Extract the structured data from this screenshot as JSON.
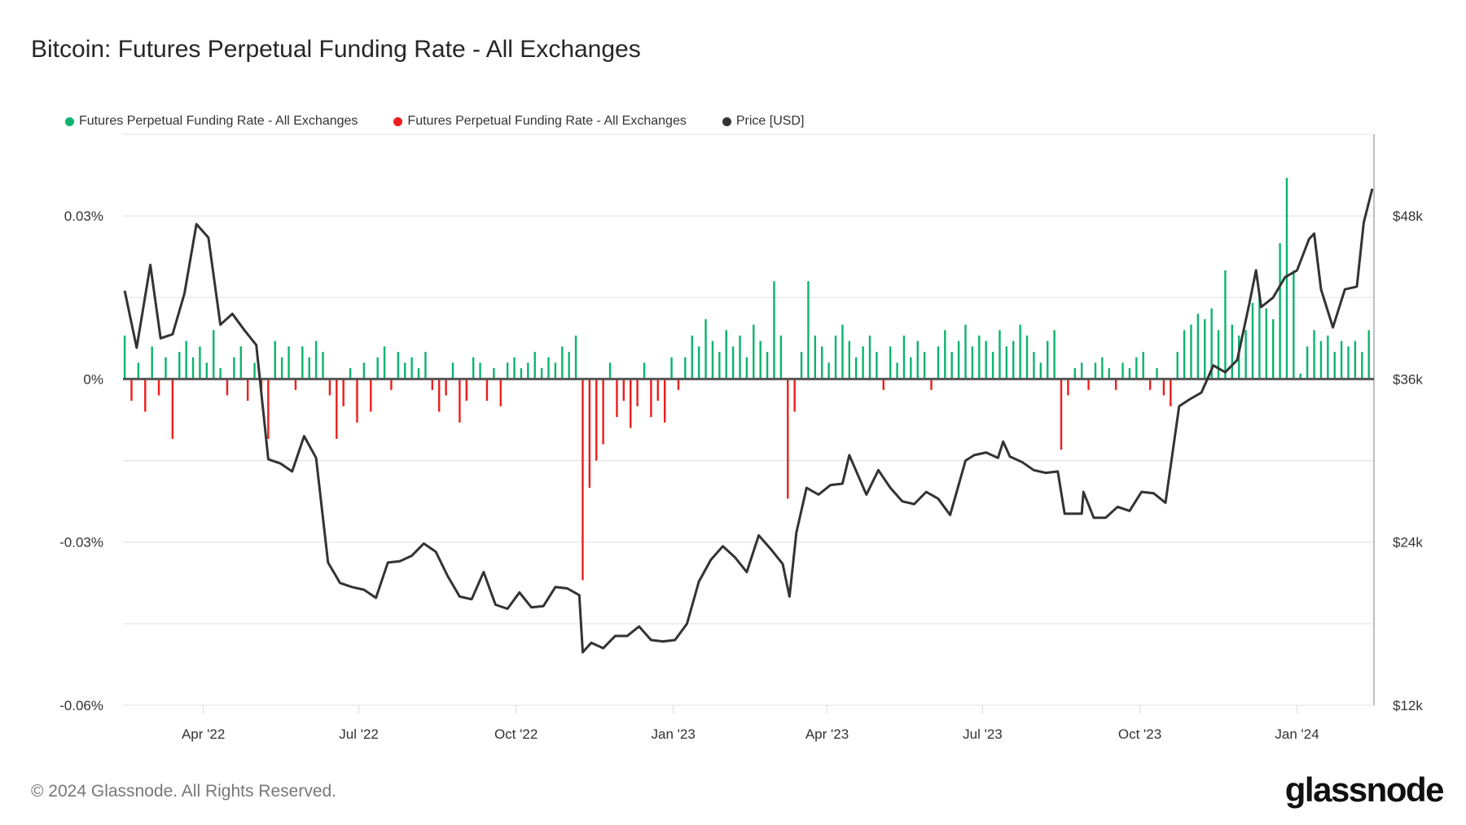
{
  "header": {
    "title": "Bitcoin: Futures Perpetual Funding Rate - All Exchanges"
  },
  "footer": {
    "copyright": "© 2024 Glassnode. All Rights Reserved.",
    "logo": "glassnode"
  },
  "chart_data": {
    "type": "bar+line",
    "title": "Bitcoin: Futures Perpetual Funding Rate - All Exchanges",
    "legend": [
      {
        "label": "Futures Perpetual Funding Rate - All Exchanges",
        "color": "#0bb46e"
      },
      {
        "label": "Futures Perpetual Funding Rate - All Exchanges",
        "color": "#f01c1c"
      },
      {
        "label": "Price [USD]",
        "color": "#333333"
      }
    ],
    "legend_placement": "top-left",
    "grid": true,
    "xlim": [
      "2022-02-13",
      "2024-02-15"
    ],
    "x_ticks": [
      {
        "date": "2022-04-01",
        "label": "Apr '22"
      },
      {
        "date": "2022-07-01",
        "label": "Jul '22"
      },
      {
        "date": "2022-10-01",
        "label": "Oct '22"
      },
      {
        "date": "2023-01-01",
        "label": "Jan '23"
      },
      {
        "date": "2023-04-01",
        "label": "Apr '23"
      },
      {
        "date": "2023-07-01",
        "label": "Jul '23"
      },
      {
        "date": "2023-10-01",
        "label": "Oct '23"
      },
      {
        "date": "2024-01-01",
        "label": "Jan '24"
      }
    ],
    "y_left": {
      "unit": "%",
      "lim": [
        -0.06,
        0.045
      ],
      "ticks": [
        {
          "v": 0.03,
          "label": "0.03%"
        },
        {
          "v": 0,
          "label": "0%"
        },
        {
          "v": -0.03,
          "label": "-0.03%"
        },
        {
          "v": -0.06,
          "label": "-0.06%"
        }
      ]
    },
    "y_right": {
      "unit": "USD",
      "lim": [
        12000,
        54000
      ],
      "ticks": [
        {
          "v": 48000,
          "label": "$48k"
        },
        {
          "v": 36000,
          "label": "$36k"
        },
        {
          "v": 24000,
          "label": "$24k"
        },
        {
          "v": 12000,
          "label": "$12k"
        }
      ]
    },
    "positive_color": "#0bb46e",
    "negative_color": "#f01c1c",
    "price_color": "#333333",
    "funding_rate": [
      [
        "2022-02-14",
        0.008
      ],
      [
        "2022-02-18",
        -0.004
      ],
      [
        "2022-02-22",
        0.003
      ],
      [
        "2022-02-26",
        -0.006
      ],
      [
        "2022-03-02",
        0.006
      ],
      [
        "2022-03-06",
        -0.003
      ],
      [
        "2022-03-10",
        0.004
      ],
      [
        "2022-03-14",
        -0.011
      ],
      [
        "2022-03-18",
        0.005
      ],
      [
        "2022-03-22",
        0.007
      ],
      [
        "2022-03-26",
        0.004
      ],
      [
        "2022-03-30",
        0.006
      ],
      [
        "2022-04-03",
        0.003
      ],
      [
        "2022-04-07",
        0.009
      ],
      [
        "2022-04-11",
        0.002
      ],
      [
        "2022-04-15",
        -0.003
      ],
      [
        "2022-04-19",
        0.004
      ],
      [
        "2022-04-23",
        0.006
      ],
      [
        "2022-04-27",
        -0.004
      ],
      [
        "2022-05-01",
        0.003
      ],
      [
        "2022-05-05",
        -0.002
      ],
      [
        "2022-05-09",
        -0.011
      ],
      [
        "2022-05-13",
        0.007
      ],
      [
        "2022-05-17",
        0.004
      ],
      [
        "2022-05-21",
        0.006
      ],
      [
        "2022-05-25",
        -0.002
      ],
      [
        "2022-05-29",
        0.006
      ],
      [
        "2022-06-02",
        0.004
      ],
      [
        "2022-06-06",
        0.007
      ],
      [
        "2022-06-10",
        0.005
      ],
      [
        "2022-06-14",
        -0.003
      ],
      [
        "2022-06-18",
        -0.011
      ],
      [
        "2022-06-22",
        -0.005
      ],
      [
        "2022-06-26",
        0.002
      ],
      [
        "2022-06-30",
        -0.008
      ],
      [
        "2022-07-04",
        0.003
      ],
      [
        "2022-07-08",
        -0.006
      ],
      [
        "2022-07-12",
        0.004
      ],
      [
        "2022-07-16",
        0.006
      ],
      [
        "2022-07-20",
        -0.002
      ],
      [
        "2022-07-24",
        0.005
      ],
      [
        "2022-07-28",
        0.003
      ],
      [
        "2022-08-01",
        0.004
      ],
      [
        "2022-08-05",
        0.002
      ],
      [
        "2022-08-09",
        0.005
      ],
      [
        "2022-08-13",
        -0.002
      ],
      [
        "2022-08-17",
        -0.006
      ],
      [
        "2022-08-21",
        -0.003
      ],
      [
        "2022-08-25",
        0.003
      ],
      [
        "2022-08-29",
        -0.008
      ],
      [
        "2022-09-02",
        -0.004
      ],
      [
        "2022-09-06",
        0.004
      ],
      [
        "2022-09-10",
        0.003
      ],
      [
        "2022-09-14",
        -0.004
      ],
      [
        "2022-09-18",
        0.002
      ],
      [
        "2022-09-22",
        -0.005
      ],
      [
        "2022-09-26",
        0.003
      ],
      [
        "2022-09-30",
        0.004
      ],
      [
        "2022-10-04",
        0.002
      ],
      [
        "2022-10-08",
        0.003
      ],
      [
        "2022-10-12",
        0.005
      ],
      [
        "2022-10-16",
        0.002
      ],
      [
        "2022-10-20",
        0.004
      ],
      [
        "2022-10-24",
        0.003
      ],
      [
        "2022-10-28",
        0.006
      ],
      [
        "2022-11-01",
        0.005
      ],
      [
        "2022-11-05",
        0.008
      ],
      [
        "2022-11-09",
        -0.037
      ],
      [
        "2022-11-13",
        -0.02
      ],
      [
        "2022-11-17",
        -0.015
      ],
      [
        "2022-11-21",
        -0.012
      ],
      [
        "2022-11-25",
        0.003
      ],
      [
        "2022-11-29",
        -0.007
      ],
      [
        "2022-12-03",
        -0.004
      ],
      [
        "2022-12-07",
        -0.009
      ],
      [
        "2022-12-11",
        -0.005
      ],
      [
        "2022-12-15",
        0.003
      ],
      [
        "2022-12-19",
        -0.007
      ],
      [
        "2022-12-23",
        -0.004
      ],
      [
        "2022-12-27",
        -0.008
      ],
      [
        "2022-12-31",
        0.004
      ],
      [
        "2023-01-04",
        -0.002
      ],
      [
        "2023-01-08",
        0.004
      ],
      [
        "2023-01-12",
        0.008
      ],
      [
        "2023-01-16",
        0.006
      ],
      [
        "2023-01-20",
        0.011
      ],
      [
        "2023-01-24",
        0.007
      ],
      [
        "2023-01-28",
        0.005
      ],
      [
        "2023-02-01",
        0.009
      ],
      [
        "2023-02-05",
        0.006
      ],
      [
        "2023-02-09",
        0.008
      ],
      [
        "2023-02-13",
        0.004
      ],
      [
        "2023-02-17",
        0.01
      ],
      [
        "2023-02-21",
        0.007
      ],
      [
        "2023-02-25",
        0.005
      ],
      [
        "2023-03-01",
        0.018
      ],
      [
        "2023-03-05",
        0.008
      ],
      [
        "2023-03-09",
        -0.022
      ],
      [
        "2023-03-13",
        -0.006
      ],
      [
        "2023-03-17",
        0.005
      ],
      [
        "2023-03-21",
        0.018
      ],
      [
        "2023-03-25",
        0.008
      ],
      [
        "2023-03-29",
        0.006
      ],
      [
        "2023-04-02",
        0.003
      ],
      [
        "2023-04-06",
        0.008
      ],
      [
        "2023-04-10",
        0.01
      ],
      [
        "2023-04-14",
        0.007
      ],
      [
        "2023-04-18",
        0.004
      ],
      [
        "2023-04-22",
        0.006
      ],
      [
        "2023-04-26",
        0.008
      ],
      [
        "2023-04-30",
        0.005
      ],
      [
        "2023-05-04",
        -0.002
      ],
      [
        "2023-05-08",
        0.006
      ],
      [
        "2023-05-12",
        0.003
      ],
      [
        "2023-05-16",
        0.008
      ],
      [
        "2023-05-20",
        0.004
      ],
      [
        "2023-05-24",
        0.007
      ],
      [
        "2023-05-28",
        0.005
      ],
      [
        "2023-06-01",
        -0.002
      ],
      [
        "2023-06-05",
        0.006
      ],
      [
        "2023-06-09",
        0.009
      ],
      [
        "2023-06-13",
        0.005
      ],
      [
        "2023-06-17",
        0.007
      ],
      [
        "2023-06-21",
        0.01
      ],
      [
        "2023-06-25",
        0.006
      ],
      [
        "2023-06-29",
        0.008
      ],
      [
        "2023-07-03",
        0.007
      ],
      [
        "2023-07-07",
        0.005
      ],
      [
        "2023-07-11",
        0.009
      ],
      [
        "2023-07-15",
        0.006
      ],
      [
        "2023-07-19",
        0.007
      ],
      [
        "2023-07-23",
        0.01
      ],
      [
        "2023-07-27",
        0.008
      ],
      [
        "2023-07-31",
        0.005
      ],
      [
        "2023-08-04",
        0.003
      ],
      [
        "2023-08-08",
        0.007
      ],
      [
        "2023-08-12",
        0.009
      ],
      [
        "2023-08-16",
        -0.013
      ],
      [
        "2023-08-20",
        -0.003
      ],
      [
        "2023-08-24",
        0.002
      ],
      [
        "2023-08-28",
        0.003
      ],
      [
        "2023-09-01",
        -0.002
      ],
      [
        "2023-09-05",
        0.003
      ],
      [
        "2023-09-09",
        0.004
      ],
      [
        "2023-09-13",
        0.002
      ],
      [
        "2023-09-17",
        -0.002
      ],
      [
        "2023-09-21",
        0.003
      ],
      [
        "2023-09-25",
        0.002
      ],
      [
        "2023-09-29",
        0.004
      ],
      [
        "2023-10-03",
        0.005
      ],
      [
        "2023-10-07",
        -0.002
      ],
      [
        "2023-10-11",
        0.002
      ],
      [
        "2023-10-15",
        -0.003
      ],
      [
        "2023-10-19",
        -0.005
      ],
      [
        "2023-10-23",
        0.005
      ],
      [
        "2023-10-27",
        0.009
      ],
      [
        "2023-10-31",
        0.01
      ],
      [
        "2023-11-04",
        0.012
      ],
      [
        "2023-11-08",
        0.011
      ],
      [
        "2023-11-12",
        0.013
      ],
      [
        "2023-11-16",
        0.009
      ],
      [
        "2023-11-20",
        0.02
      ],
      [
        "2023-11-24",
        0.01
      ],
      [
        "2023-11-28",
        0.008
      ],
      [
        "2023-12-02",
        0.009
      ],
      [
        "2023-12-06",
        0.014
      ],
      [
        "2023-12-10",
        0.016
      ],
      [
        "2023-12-14",
        0.013
      ],
      [
        "2023-12-18",
        0.011
      ],
      [
        "2023-12-22",
        0.025
      ],
      [
        "2023-12-26",
        0.037
      ],
      [
        "2023-12-30",
        0.02
      ],
      [
        "2024-01-03",
        0.001
      ],
      [
        "2024-01-07",
        0.006
      ],
      [
        "2024-01-11",
        0.009
      ],
      [
        "2024-01-15",
        0.007
      ],
      [
        "2024-01-19",
        0.008
      ],
      [
        "2024-01-23",
        0.005
      ],
      [
        "2024-01-27",
        0.007
      ],
      [
        "2024-01-31",
        0.006
      ],
      [
        "2024-02-04",
        0.007
      ],
      [
        "2024-02-08",
        0.005
      ],
      [
        "2024-02-12",
        0.009
      ]
    ],
    "price": [
      [
        "2022-02-14",
        42500
      ],
      [
        "2022-02-21",
        38300
      ],
      [
        "2022-03-01",
        44400
      ],
      [
        "2022-03-07",
        39000
      ],
      [
        "2022-03-14",
        39300
      ],
      [
        "2022-03-21",
        42300
      ],
      [
        "2022-03-28",
        47400
      ],
      [
        "2022-04-04",
        46400
      ],
      [
        "2022-04-11",
        40000
      ],
      [
        "2022-04-18",
        40800
      ],
      [
        "2022-04-25",
        39600
      ],
      [
        "2022-05-02",
        38500
      ],
      [
        "2022-05-09",
        30100
      ],
      [
        "2022-05-16",
        29800
      ],
      [
        "2022-05-23",
        29200
      ],
      [
        "2022-05-30",
        31800
      ],
      [
        "2022-06-06",
        30200
      ],
      [
        "2022-06-13",
        22500
      ],
      [
        "2022-06-20",
        21000
      ],
      [
        "2022-06-27",
        20700
      ],
      [
        "2022-07-04",
        20500
      ],
      [
        "2022-07-11",
        19900
      ],
      [
        "2022-07-18",
        22500
      ],
      [
        "2022-07-25",
        22600
      ],
      [
        "2022-08-01",
        23000
      ],
      [
        "2022-08-08",
        23900
      ],
      [
        "2022-08-15",
        23300
      ],
      [
        "2022-08-22",
        21500
      ],
      [
        "2022-08-29",
        20000
      ],
      [
        "2022-09-05",
        19800
      ],
      [
        "2022-09-12",
        21800
      ],
      [
        "2022-09-19",
        19400
      ],
      [
        "2022-09-26",
        19100
      ],
      [
        "2022-10-03",
        20300
      ],
      [
        "2022-10-10",
        19200
      ],
      [
        "2022-10-17",
        19300
      ],
      [
        "2022-10-24",
        20700
      ],
      [
        "2022-10-31",
        20600
      ],
      [
        "2022-11-07",
        20100
      ],
      [
        "2022-11-09",
        15900
      ],
      [
        "2022-11-14",
        16600
      ],
      [
        "2022-11-21",
        16200
      ],
      [
        "2022-11-28",
        17100
      ],
      [
        "2022-12-05",
        17100
      ],
      [
        "2022-12-12",
        17800
      ],
      [
        "2022-12-19",
        16800
      ],
      [
        "2022-12-26",
        16700
      ],
      [
        "2023-01-02",
        16800
      ],
      [
        "2023-01-09",
        18000
      ],
      [
        "2023-01-16",
        21100
      ],
      [
        "2023-01-23",
        22700
      ],
      [
        "2023-01-30",
        23700
      ],
      [
        "2023-02-06",
        22900
      ],
      [
        "2023-02-13",
        21800
      ],
      [
        "2023-02-20",
        24500
      ],
      [
        "2023-02-27",
        23500
      ],
      [
        "2023-03-06",
        22400
      ],
      [
        "2023-03-10",
        20000
      ],
      [
        "2023-03-14",
        24700
      ],
      [
        "2023-03-20",
        28000
      ],
      [
        "2023-03-27",
        27500
      ],
      [
        "2023-04-03",
        28200
      ],
      [
        "2023-04-10",
        28300
      ],
      [
        "2023-04-14",
        30400
      ],
      [
        "2023-04-24",
        27500
      ],
      [
        "2023-05-01",
        29300
      ],
      [
        "2023-05-08",
        28000
      ],
      [
        "2023-05-15",
        27000
      ],
      [
        "2023-05-22",
        26800
      ],
      [
        "2023-05-29",
        27700
      ],
      [
        "2023-06-05",
        27200
      ],
      [
        "2023-06-12",
        26000
      ],
      [
        "2023-06-21",
        30000
      ],
      [
        "2023-06-26",
        30400
      ],
      [
        "2023-07-03",
        30600
      ],
      [
        "2023-07-10",
        30200
      ],
      [
        "2023-07-13",
        31400
      ],
      [
        "2023-07-17",
        30300
      ],
      [
        "2023-07-24",
        29900
      ],
      [
        "2023-07-31",
        29300
      ],
      [
        "2023-08-07",
        29100
      ],
      [
        "2023-08-14",
        29200
      ],
      [
        "2023-08-18",
        26100
      ],
      [
        "2023-08-28",
        26100
      ],
      [
        "2023-08-29",
        27700
      ],
      [
        "2023-09-04",
        25800
      ],
      [
        "2023-09-11",
        25800
      ],
      [
        "2023-09-18",
        26600
      ],
      [
        "2023-09-25",
        26300
      ],
      [
        "2023-10-02",
        27700
      ],
      [
        "2023-10-09",
        27600
      ],
      [
        "2023-10-16",
        26900
      ],
      [
        "2023-10-24",
        34000
      ],
      [
        "2023-10-30",
        34500
      ],
      [
        "2023-11-06",
        35000
      ],
      [
        "2023-11-13",
        37000
      ],
      [
        "2023-11-20",
        36500
      ],
      [
        "2023-11-27",
        37400
      ],
      [
        "2023-12-04",
        41500
      ],
      [
        "2023-12-08",
        44000
      ],
      [
        "2023-12-11",
        41300
      ],
      [
        "2023-12-18",
        42000
      ],
      [
        "2023-12-25",
        43500
      ],
      [
        "2024-01-01",
        44000
      ],
      [
        "2024-01-08",
        46300
      ],
      [
        "2024-01-11",
        46700
      ],
      [
        "2024-01-15",
        42600
      ],
      [
        "2024-01-22",
        39800
      ],
      [
        "2024-01-29",
        42600
      ],
      [
        "2024-02-05",
        42800
      ],
      [
        "2024-02-09",
        47500
      ],
      [
        "2024-02-14",
        50000
      ]
    ]
  }
}
